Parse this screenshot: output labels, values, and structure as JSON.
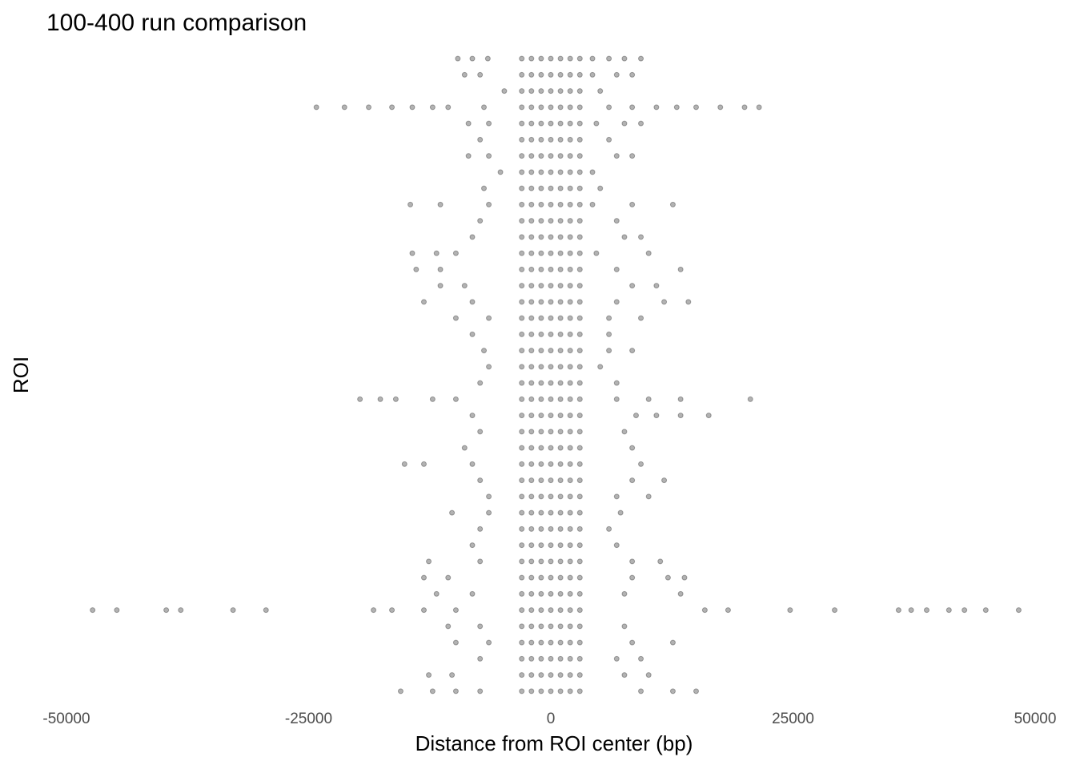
{
  "chart_data": {
    "type": "scatter",
    "title": "100-400 run comparison",
    "x_label": "Distance from ROI center (bp)",
    "y_label": "ROI",
    "color": "rgba(0,0,0,0.3)",
    "xlim": [
      -50000,
      50000
    ],
    "xticks": [
      -50000,
      -25000,
      0,
      25000,
      50000
    ],
    "ylim": [
      0.5,
      40.5
    ],
    "x": [
      -3000,
      -2000,
      -1000,
      0,
      1000,
      2000,
      3000,
      -9600,
      -8100,
      -6500,
      4300,
      6000,
      7600,
      9300,
      -3000,
      -2000,
      -1000,
      0,
      1000,
      2000,
      3000,
      -8900,
      -7300,
      4300,
      6800,
      8400,
      -3000,
      -2000,
      -1000,
      0,
      1000,
      2000,
      3000,
      -4800,
      5100,
      -3000,
      -2000,
      -1000,
      0,
      1000,
      2000,
      3000,
      -24200,
      -21300,
      -18800,
      -16400,
      -14300,
      -12200,
      -10600,
      -6900,
      6000,
      8400,
      10900,
      13000,
      15000,
      17500,
      20000,
      21500,
      -3000,
      -2000,
      -1000,
      0,
      1000,
      2000,
      3000,
      -8500,
      -6400,
      4700,
      7600,
      9300,
      -3000,
      -2000,
      -1000,
      0,
      1000,
      2000,
      3000,
      -7300,
      6000,
      -3000,
      -2000,
      -1000,
      0,
      1000,
      2000,
      3000,
      -8500,
      -6400,
      6800,
      8400,
      -3000,
      -2000,
      -1000,
      0,
      1000,
      2000,
      3000,
      -5200,
      4300,
      -3000,
      -2000,
      -1000,
      0,
      1000,
      2000,
      3000,
      -6900,
      5100,
      -3000,
      -2000,
      -1000,
      0,
      1000,
      2000,
      3000,
      -14500,
      -11400,
      -6400,
      4300,
      8400,
      12600,
      -3000,
      -2000,
      -1000,
      0,
      1000,
      2000,
      3000,
      -7300,
      6800,
      -3000,
      -2000,
      -1000,
      0,
      1000,
      2000,
      3000,
      -8100,
      7600,
      9300,
      -3000,
      -2000,
      -1000,
      0,
      1000,
      2000,
      3000,
      -14300,
      -11800,
      -9800,
      4700,
      10100,
      -3000,
      -2000,
      -1000,
      0,
      1000,
      2000,
      3000,
      -13900,
      -11400,
      6800,
      13400,
      -3000,
      -2000,
      -1000,
      0,
      1000,
      2000,
      3000,
      -11400,
      -8900,
      8400,
      10900,
      -3000,
      -2000,
      -1000,
      0,
      1000,
      2000,
      3000,
      -13100,
      -8100,
      6800,
      11700,
      14200,
      -3000,
      -2000,
      -1000,
      0,
      1000,
      2000,
      3000,
      -9800,
      -6400,
      6000,
      9300,
      -3000,
      -2000,
      -1000,
      0,
      1000,
      2000,
      3000,
      -8100,
      6000,
      -3000,
      -2000,
      -1000,
      0,
      1000,
      2000,
      3000,
      -6900,
      6000,
      8400,
      -3000,
      -2000,
      -1000,
      0,
      1000,
      2000,
      3000,
      -6400,
      5100,
      -3000,
      -2000,
      -1000,
      0,
      1000,
      2000,
      3000,
      -7300,
      6800,
      -3000,
      -2000,
      -1000,
      0,
      1000,
      2000,
      3000,
      -19700,
      -17600,
      -16000,
      -12200,
      -9800,
      6800,
      10100,
      13400,
      20600,
      -3000,
      -2000,
      -1000,
      0,
      1000,
      2000,
      3000,
      -8100,
      8800,
      10900,
      13400,
      16300,
      -3000,
      -2000,
      -1000,
      0,
      1000,
      2000,
      3000,
      -7300,
      7600,
      -3000,
      -2000,
      -1000,
      0,
      1000,
      2000,
      3000,
      -8900,
      8400,
      -3000,
      -2000,
      -1000,
      0,
      1000,
      2000,
      3000,
      -15100,
      -13100,
      -8100,
      9300,
      -3000,
      -2000,
      -1000,
      0,
      1000,
      2000,
      3000,
      -7300,
      8400,
      11700,
      -3000,
      -2000,
      -1000,
      0,
      1000,
      2000,
      3000,
      -6400,
      6800,
      10100,
      -3000,
      -2000,
      -1000,
      0,
      1000,
      2000,
      3000,
      -10200,
      -6400,
      7200,
      -3000,
      -2000,
      -1000,
      0,
      1000,
      2000,
      3000,
      -7300,
      6000,
      -3000,
      -2000,
      -1000,
      0,
      1000,
      2000,
      3000,
      -8100,
      6800,
      -3000,
      -2000,
      -1000,
      0,
      1000,
      2000,
      3000,
      -12600,
      -7300,
      8400,
      11300,
      -3000,
      -2000,
      -1000,
      0,
      1000,
      2000,
      3000,
      -13100,
      -10600,
      8400,
      12100,
      13800,
      -3000,
      -2000,
      -1000,
      0,
      1000,
      2000,
      3000,
      -11800,
      -8100,
      7600,
      13400,
      -3000,
      -2000,
      -1000,
      0,
      1000,
      2000,
      3000,
      -47300,
      -44800,
      -39700,
      -38200,
      -32800,
      -29400,
      -18300,
      -16400,
      -13100,
      -9800,
      15900,
      18300,
      24700,
      29300,
      35900,
      37200,
      38800,
      41100,
      42700,
      44900,
      48300,
      -3000,
      -2000,
      -1000,
      0,
      1000,
      2000,
      3000,
      -10600,
      -7300,
      7600,
      -3000,
      -2000,
      -1000,
      0,
      1000,
      2000,
      3000,
      -9800,
      -6400,
      8400,
      12600,
      -3000,
      -2000,
      -1000,
      0,
      1000,
      2000,
      3000,
      -7300,
      6800,
      9300,
      -3000,
      -2000,
      -1000,
      0,
      1000,
      2000,
      3000,
      -12600,
      -10200,
      7600,
      10100,
      -3000,
      -2000,
      -1000,
      0,
      1000,
      2000,
      3000,
      -15500,
      -12200,
      -9800,
      -7300,
      9300,
      12600,
      15000
    ],
    "values": [
      40,
      40,
      40,
      40,
      40,
      40,
      40,
      40,
      40,
      40,
      40,
      40,
      40,
      40,
      39,
      39,
      39,
      39,
      39,
      39,
      39,
      39,
      39,
      39,
      39,
      39,
      38,
      38,
      38,
      38,
      38,
      38,
      38,
      38,
      38,
      37,
      37,
      37,
      37,
      37,
      37,
      37,
      37,
      37,
      37,
      37,
      37,
      37,
      37,
      37,
      37,
      37,
      37,
      37,
      37,
      37,
      37,
      37,
      36,
      36,
      36,
      36,
      36,
      36,
      36,
      36,
      36,
      36,
      36,
      36,
      35,
      35,
      35,
      35,
      35,
      35,
      35,
      35,
      35,
      34,
      34,
      34,
      34,
      34,
      34,
      34,
      34,
      34,
      34,
      34,
      33,
      33,
      33,
      33,
      33,
      33,
      33,
      33,
      33,
      32,
      32,
      32,
      32,
      32,
      32,
      32,
      32,
      32,
      31,
      31,
      31,
      31,
      31,
      31,
      31,
      31,
      31,
      31,
      31,
      31,
      31,
      30,
      30,
      30,
      30,
      30,
      30,
      30,
      30,
      30,
      29,
      29,
      29,
      29,
      29,
      29,
      29,
      29,
      29,
      29,
      28,
      28,
      28,
      28,
      28,
      28,
      28,
      28,
      28,
      28,
      28,
      28,
      27,
      27,
      27,
      27,
      27,
      27,
      27,
      27,
      27,
      27,
      27,
      26,
      26,
      26,
      26,
      26,
      26,
      26,
      26,
      26,
      26,
      26,
      25,
      25,
      25,
      25,
      25,
      25,
      25,
      25,
      25,
      25,
      25,
      25,
      24,
      24,
      24,
      24,
      24,
      24,
      24,
      24,
      24,
      24,
      24,
      23,
      23,
      23,
      23,
      23,
      23,
      23,
      23,
      23,
      22,
      22,
      22,
      22,
      22,
      22,
      22,
      22,
      22,
      22,
      21,
      21,
      21,
      21,
      21,
      21,
      21,
      21,
      21,
      20,
      20,
      20,
      20,
      20,
      20,
      20,
      20,
      20,
      19,
      19,
      19,
      19,
      19,
      19,
      19,
      19,
      19,
      19,
      19,
      19,
      19,
      19,
      19,
      19,
      18,
      18,
      18,
      18,
      18,
      18,
      18,
      18,
      18,
      18,
      18,
      18,
      17,
      17,
      17,
      17,
      17,
      17,
      17,
      17,
      17,
      16,
      16,
      16,
      16,
      16,
      16,
      16,
      16,
      16,
      15,
      15,
      15,
      15,
      15,
      15,
      15,
      15,
      15,
      15,
      15,
      14,
      14,
      14,
      14,
      14,
      14,
      14,
      14,
      14,
      14,
      13,
      13,
      13,
      13,
      13,
      13,
      13,
      13,
      13,
      13,
      12,
      12,
      12,
      12,
      12,
      12,
      12,
      12,
      12,
      12,
      11,
      11,
      11,
      11,
      11,
      11,
      11,
      11,
      11,
      10,
      10,
      10,
      10,
      10,
      10,
      10,
      10,
      10,
      9,
      9,
      9,
      9,
      9,
      9,
      9,
      9,
      9,
      9,
      9,
      8,
      8,
      8,
      8,
      8,
      8,
      8,
      8,
      8,
      8,
      8,
      8,
      7,
      7,
      7,
      7,
      7,
      7,
      7,
      7,
      7,
      7,
      7,
      6,
      6,
      6,
      6,
      6,
      6,
      6,
      6,
      6,
      6,
      6,
      6,
      6,
      6,
      6,
      6,
      6,
      6,
      6,
      6,
      6,
      6,
      6,
      6,
      6,
      6,
      6,
      6,
      5,
      5,
      5,
      5,
      5,
      5,
      5,
      5,
      5,
      5,
      4,
      4,
      4,
      4,
      4,
      4,
      4,
      4,
      4,
      4,
      4,
      3,
      3,
      3,
      3,
      3,
      3,
      3,
      3,
      3,
      3,
      2,
      2,
      2,
      2,
      2,
      2,
      2,
      2,
      2,
      2,
      2,
      1,
      1,
      1,
      1,
      1,
      1,
      1,
      1,
      1,
      1,
      1,
      1,
      1,
      1
    ]
  }
}
